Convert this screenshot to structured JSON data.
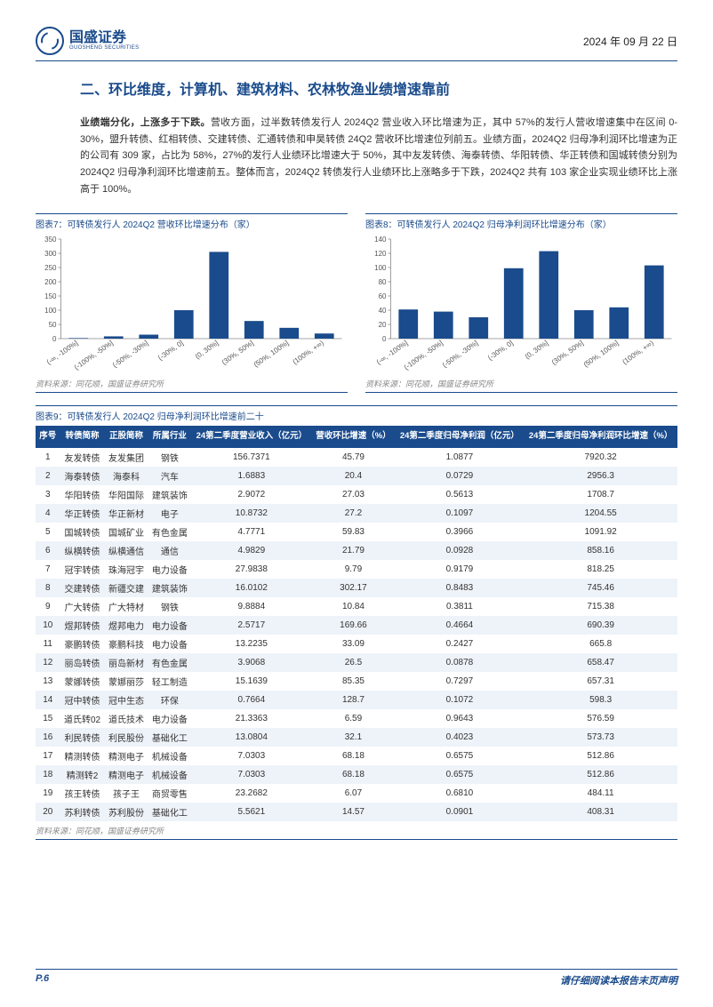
{
  "header": {
    "company_cn": "国盛证券",
    "company_en": "GUOSHENG SECURITIES",
    "date": "2024 年 09 月 22 日"
  },
  "section_title": "二、环比维度，计算机、建筑材料、农林牧渔业绩增速靠前",
  "paragraph": {
    "lead": "业绩端分化，上涨多于下跌。",
    "rest": "营收方面，过半数转债发行人 2024Q2 营业收入环比增速为正，其中 57%的发行人营收增速集中在区间 0-30%，盟升转债、红相转债、交建转债、汇通转债和申昊转债 24Q2 营收环比增速位列前五。业绩方面，2024Q2 归母净利润环比增速为正的公司有 309 家，占比为 58%，27%的发行人业绩环比增速大于 50%，其中友发转债、海泰转债、华阳转债、华正转债和国城转债分别为 2024Q2 归母净利润环比增速前五。整体而言，2024Q2 转债发行人业绩环比上涨略多于下跌，2024Q2 共有 103 家企业实现业绩环比上涨高于 100%。"
  },
  "chart7": {
    "caption": "图表7：可转债发行人 2024Q2 营收环比增速分布（家）",
    "type": "bar",
    "categories": [
      "(-∞, -100%]",
      "(-100%, -50%]",
      "(-50%, -30%]",
      "(-30%, 0]",
      "(0, 30%]",
      "(30%, 50%]",
      "(50%, 100%]",
      "(100%, +∞)"
    ],
    "values": [
      2,
      8,
      14,
      100,
      305,
      62,
      38,
      18
    ],
    "bar_color": "#1a4b8c",
    "ylim": [
      0,
      350
    ],
    "ytick_step": 50,
    "background": "#ffffff",
    "source": "资料来源：同花顺，国盛证券研究所"
  },
  "chart8": {
    "caption": "图表8：可转债发行人 2024Q2 归母净利润环比增速分布（家）",
    "type": "bar",
    "categories": [
      "(-∞, -100%]",
      "(-100%, -50%]",
      "(-50%, -30%]",
      "(-30%, 0]",
      "(0, 30%]",
      "(30%, 50%]",
      "(50%, 100%]",
      "(100%, +∞)"
    ],
    "values": [
      41,
      38,
      30,
      99,
      123,
      40,
      44,
      103
    ],
    "bar_color": "#1a4b8c",
    "ylim": [
      0,
      140
    ],
    "ytick_step": 20,
    "background": "#ffffff",
    "source": "资料来源：同花顺，国盛证券研究所"
  },
  "table9": {
    "caption": "图表9：可转债发行人 2024Q2 归母净利润环比增速前二十",
    "columns": [
      "序号",
      "转债简称",
      "正股简称",
      "所属行业",
      "24第二季度营业收入（亿元）",
      "营收环比增速（%）",
      "24第二季度归母净利润（亿元）",
      "24第二季度归母净利润环比增速（%）"
    ],
    "rows": [
      [
        "1",
        "友发转债",
        "友发集团",
        "钢铁",
        "156.7371",
        "45.79",
        "1.0877",
        "7920.32"
      ],
      [
        "2",
        "海泰转债",
        "海泰科",
        "汽车",
        "1.6883",
        "20.4",
        "0.0729",
        "2956.3"
      ],
      [
        "3",
        "华阳转债",
        "华阳国际",
        "建筑装饰",
        "2.9072",
        "27.03",
        "0.5613",
        "1708.7"
      ],
      [
        "4",
        "华正转债",
        "华正新材",
        "电子",
        "10.8732",
        "27.2",
        "0.1097",
        "1204.55"
      ],
      [
        "5",
        "国城转债",
        "国城矿业",
        "有色金属",
        "4.7771",
        "59.83",
        "0.3966",
        "1091.92"
      ],
      [
        "6",
        "纵横转债",
        "纵横通信",
        "通信",
        "4.9829",
        "21.79",
        "0.0928",
        "858.16"
      ],
      [
        "7",
        "冠宇转债",
        "珠海冠宇",
        "电力设备",
        "27.9838",
        "9.79",
        "0.9179",
        "818.25"
      ],
      [
        "8",
        "交建转债",
        "新疆交建",
        "建筑装饰",
        "16.0102",
        "302.17",
        "0.8483",
        "745.46"
      ],
      [
        "9",
        "广大转债",
        "广大特材",
        "钢铁",
        "9.8884",
        "10.84",
        "0.3811",
        "715.38"
      ],
      [
        "10",
        "煜邦转债",
        "煜邦电力",
        "电力设备",
        "2.5717",
        "169.66",
        "0.4664",
        "690.39"
      ],
      [
        "11",
        "豪鹏转债",
        "豪鹏科技",
        "电力设备",
        "13.2235",
        "33.09",
        "0.2427",
        "665.8"
      ],
      [
        "12",
        "丽岛转债",
        "丽岛新材",
        "有色金属",
        "3.9068",
        "26.5",
        "0.0878",
        "658.47"
      ],
      [
        "13",
        "蒙娜转债",
        "蒙娜丽莎",
        "轻工制造",
        "15.1639",
        "85.35",
        "0.7297",
        "657.31"
      ],
      [
        "14",
        "冠中转债",
        "冠中生态",
        "环保",
        "0.7664",
        "128.7",
        "0.1072",
        "598.3"
      ],
      [
        "15",
        "道氏转02",
        "道氏技术",
        "电力设备",
        "21.3363",
        "6.59",
        "0.9643",
        "576.59"
      ],
      [
        "16",
        "利民转债",
        "利民股份",
        "基础化工",
        "13.0804",
        "32.1",
        "0.4023",
        "573.73"
      ],
      [
        "17",
        "精测转债",
        "精测电子",
        "机械设备",
        "7.0303",
        "68.18",
        "0.6575",
        "512.86"
      ],
      [
        "18",
        "精测转2",
        "精测电子",
        "机械设备",
        "7.0303",
        "68.18",
        "0.6575",
        "512.86"
      ],
      [
        "19",
        "孩王转债",
        "孩子王",
        "商贸零售",
        "23.2682",
        "6.07",
        "0.6810",
        "484.11"
      ],
      [
        "20",
        "苏利转债",
        "苏利股份",
        "基础化工",
        "5.5621",
        "14.57",
        "0.0901",
        "408.31"
      ]
    ],
    "source": "资料来源：同花顺，国盛证券研究所"
  },
  "footer": {
    "page": "P.6",
    "disclaimer": "请仔细阅读本报告末页声明"
  }
}
